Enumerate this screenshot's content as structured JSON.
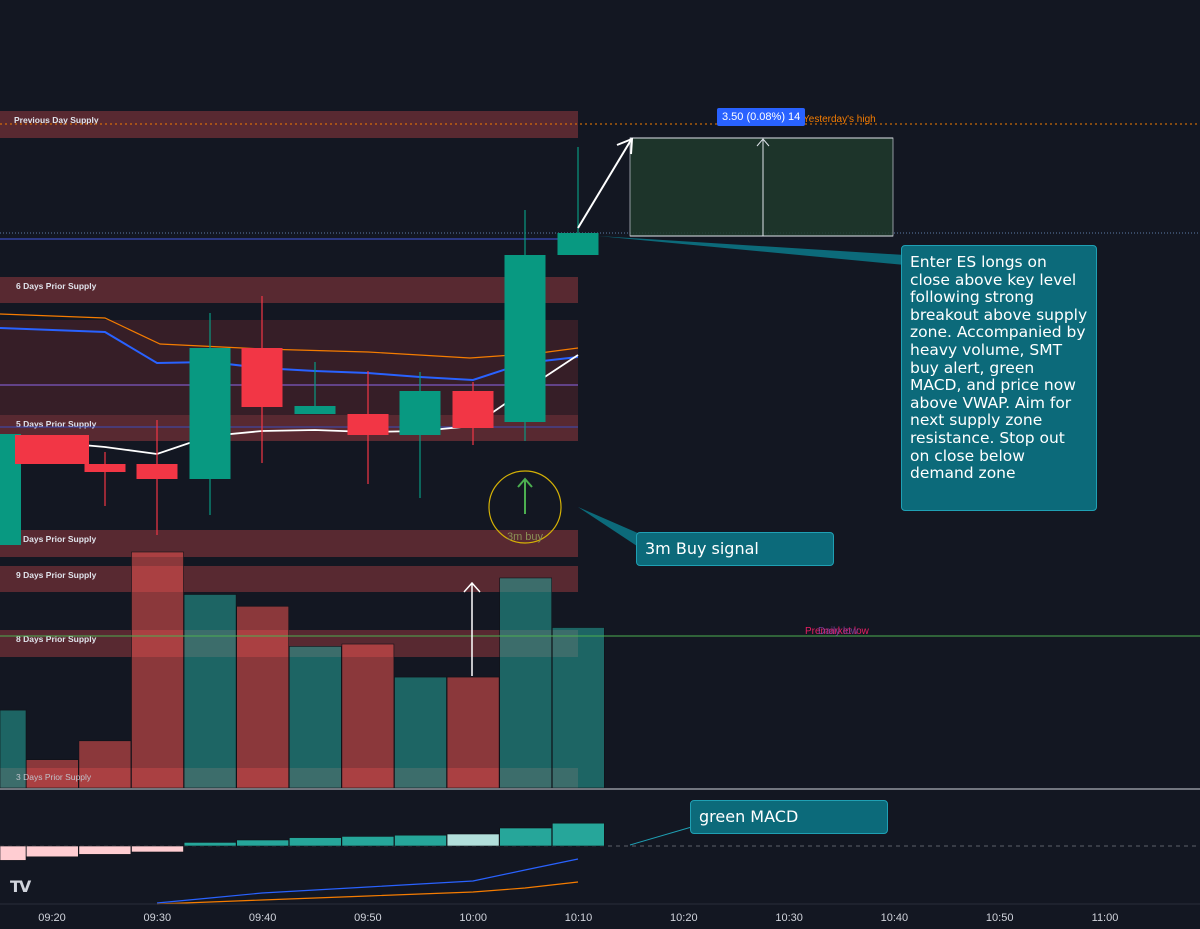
{
  "chart_data": [
    {
      "type": "candlestick",
      "x_ticks": [
        "09:20",
        "09:30",
        "09:40",
        "09:50",
        "10:00",
        "10:10",
        "10:20",
        "10:30",
        "10:40",
        "10:50",
        "11:00"
      ],
      "candles": [
        {
          "dir": "up"
        },
        {
          "dir": "down"
        },
        {
          "dir": "down"
        },
        {
          "dir": "down"
        },
        {
          "dir": "up"
        },
        {
          "dir": "down"
        },
        {
          "dir": "up"
        },
        {
          "dir": "down"
        },
        {
          "dir": "up"
        },
        {
          "dir": "down"
        },
        {
          "dir": "up"
        },
        {
          "dir": "up"
        }
      ],
      "zones": [
        {
          "label": "Previous Day Supply"
        },
        {
          "label": "6 Days Prior Supply"
        },
        {
          "label": "5 Days Prior Supply"
        },
        {
          "label": "Days Prior Supply"
        },
        {
          "label": "9 Days Prior Supply"
        },
        {
          "label": "8 Days Prior Supply"
        },
        {
          "label": "3 Days Prior Supply"
        }
      ],
      "level_labels": {
        "yesterdays_high": "Yesterday's high",
        "premarket_low": "Premarket low",
        "daily_low": "Daily low"
      },
      "signal_label": "3m buy",
      "measure_label": "3.50 (0.08%) 14"
    },
    {
      "type": "bar",
      "name": "volume",
      "bars": [
        {
          "dir": "up",
          "value": 0.33
        },
        {
          "dir": "down",
          "value": 0.12
        },
        {
          "dir": "down",
          "value": 0.2
        },
        {
          "dir": "down",
          "value": 1.0
        },
        {
          "dir": "up",
          "value": 0.82
        },
        {
          "dir": "down",
          "value": 0.77
        },
        {
          "dir": "up",
          "value": 0.6
        },
        {
          "dir": "down",
          "value": 0.61
        },
        {
          "dir": "up",
          "value": 0.47
        },
        {
          "dir": "down",
          "value": 0.47
        },
        {
          "dir": "up",
          "value": 0.89
        },
        {
          "dir": "up",
          "value": 0.68
        }
      ]
    },
    {
      "type": "bar",
      "name": "MACD histogram",
      "bars": [
        {
          "color": "pink",
          "value": -0.6
        },
        {
          "color": "pink",
          "value": -0.45
        },
        {
          "color": "pink",
          "value": -0.35
        },
        {
          "color": "pink",
          "value": -0.25
        },
        {
          "color": "teal",
          "value": 0.15
        },
        {
          "color": "teal",
          "value": 0.25
        },
        {
          "color": "teal",
          "value": 0.35
        },
        {
          "color": "teal",
          "value": 0.4
        },
        {
          "color": "teal",
          "value": 0.45
        },
        {
          "color": "light",
          "value": 0.5
        },
        {
          "color": "teal",
          "value": 0.75
        },
        {
          "color": "teal",
          "value": 0.95
        }
      ]
    }
  ],
  "callouts": {
    "main": "Enter ES longs on close above key level following strong breakout above supply zone. Accompanied by heavy volume, SMT buy alert, green MACD, and price now above VWAP. Aim for next supply zone resistance. Stop out on close below demand zone",
    "buy_signal": "3m Buy signal",
    "macd": "green MACD"
  },
  "colors": {
    "background": "#131722",
    "up": "#089981",
    "down": "#f23645",
    "zone": "#5c2a33",
    "callout": "#0c6a7a",
    "vwap": "#ffffff",
    "ma_blue": "#2962ff",
    "ma_orange": "#f57c00",
    "purple": "#7e57c2",
    "green_level": "#4caf50"
  },
  "logo": "TV"
}
